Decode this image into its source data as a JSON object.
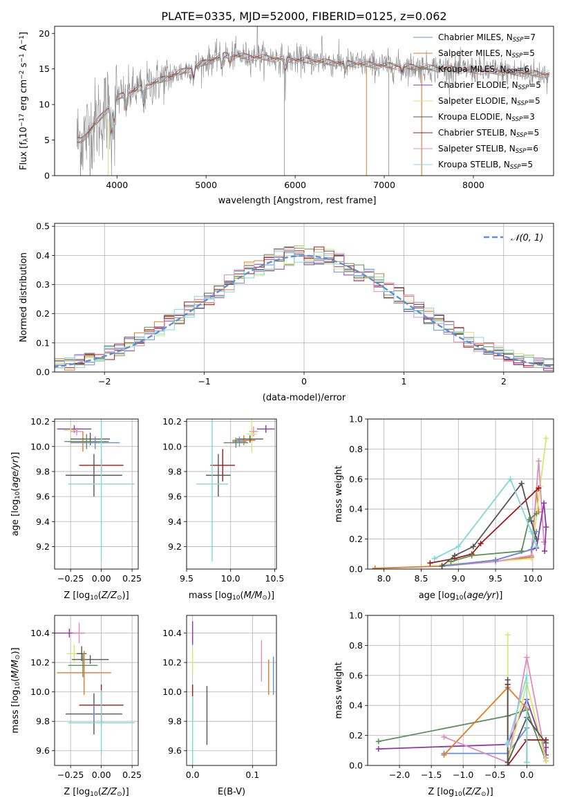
{
  "title": "PLATE=0335, MJD=52000, FIBERID=0125, z=0.062",
  "colors": [
    "#6a8fd8",
    "#e07a26",
    "#5a8f5a",
    "#8e35a8",
    "#d7e86a",
    "#555555",
    "#a01818",
    "#e08cbf",
    "#7fd8dc",
    "#888888"
  ],
  "chart_data": [
    {
      "type": "line",
      "xlabel": "wavelength [Angstrom, rest frame]",
      "ylabel": "Flux [f",
      "ylabel_parts": [
        "Flux [f",
        "λ",
        "10",
        "−17",
        " erg cm",
        "−2",
        " s",
        "−1",
        " A",
        "−1",
        "]"
      ],
      "xlim": [
        3300,
        8900
      ],
      "ylim": [
        0,
        21
      ],
      "xticks": [
        4000,
        5000,
        6000,
        7000,
        8000
      ],
      "yticks": [
        0,
        5,
        10,
        15,
        20
      ],
      "grid": false,
      "legend_position": "top-right",
      "series": [
        {
          "name": "Chabrier MILES",
          "nssp": "7"
        },
        {
          "name": "Salpeter MILES",
          "nssp": "5"
        },
        {
          "name": "Kroupa MILES",
          "nssp": "6"
        },
        {
          "name": "Chabrier ELODIE",
          "nssp": "5"
        },
        {
          "name": "Salpeter ELODIE",
          "nssp": "5"
        },
        {
          "name": "Kroupa ELODIE",
          "nssp": "3"
        },
        {
          "name": "Chabrier STELIB",
          "nssp": "5"
        },
        {
          "name": "Salpeter STELIB",
          "nssp": "6"
        },
        {
          "name": "Kroupa STELIB",
          "nssp": "5"
        }
      ],
      "legend_sub": "SSP",
      "legend_prefix": "N"
    },
    {
      "type": "line",
      "xlabel": "(data-model)/error",
      "ylabel": "Normed distribution",
      "xlim": [
        -2.5,
        2.5
      ],
      "ylim": [
        0,
        0.51
      ],
      "xticks": [
        -2,
        -1,
        0,
        1,
        2
      ],
      "yticks": [
        0.0,
        0.1,
        0.2,
        0.3,
        0.4,
        0.5
      ],
      "grid": true,
      "legend_position": "top-right",
      "reference": {
        "name": "𝒩(0, 1)",
        "color": "#5b8fd6"
      }
    },
    {
      "type": "scatter",
      "xlabel": "Z [log",
      "xlabel_parts": [
        "Z [log",
        "10",
        "(Z/Z",
        "⊙",
        ")]"
      ],
      "ylabel_parts": [
        "age  [log",
        "10",
        "(age/yr)]"
      ],
      "xlim": [
        -0.38,
        0.3
      ],
      "ylim": [
        9.02,
        10.22
      ],
      "xticks": [
        -0.25,
        0.0,
        0.25
      ],
      "yticks": [
        9.2,
        9.4,
        9.6,
        9.8,
        10.0,
        10.2
      ],
      "grid": true,
      "points": [
        {
          "x": -0.22,
          "xerr": 0.14,
          "y": 10.14,
          "yerr": 0.03,
          "color": 3
        },
        {
          "x": -0.25,
          "xerr": 0.06,
          "y": 10.13,
          "yerr": 0.03,
          "color": 4
        },
        {
          "x": -0.2,
          "xerr": 0.05,
          "y": 10.12,
          "yerr": 0.03,
          "color": 7
        },
        {
          "x": -0.15,
          "xerr": 0.12,
          "y": 10.04,
          "yerr": 0.08,
          "color": 1
        },
        {
          "x": -0.09,
          "xerr": 0.16,
          "y": 10.06,
          "yerr": 0.05,
          "color": 5
        },
        {
          "x": -0.12,
          "xerr": 0.18,
          "y": 10.04,
          "yerr": 0.06,
          "color": 2
        },
        {
          "x": -0.05,
          "xerr": 0.2,
          "y": 10.03,
          "yerr": 0.05,
          "color": 0
        },
        {
          "x": 0.0,
          "xerr": 0.18,
          "y": 9.85,
          "yerr": 0.05,
          "color": 6
        },
        {
          "x": -0.06,
          "xerr": 0.23,
          "y": 9.77,
          "yerr": 0.17,
          "color": 5
        },
        {
          "x": 0.0,
          "xerr": 0.27,
          "y": 9.7,
          "yerr": 0.62,
          "color": 8
        }
      ]
    },
    {
      "type": "scatter",
      "xlabel_parts": [
        "mass [log",
        "10",
        "(M/M",
        "⊙",
        ")]"
      ],
      "xlim": [
        9.5,
        10.52
      ],
      "ylim": [
        9.02,
        10.22
      ],
      "xticks": [
        9.5,
        10.0,
        10.5
      ],
      "yticks": [
        9.2,
        9.4,
        9.6,
        9.8,
        10.0,
        10.2
      ],
      "grid": true,
      "points": [
        {
          "x": 10.4,
          "xerr": 0.1,
          "y": 10.14,
          "yerr": 0.03,
          "color": 3
        },
        {
          "x": 10.26,
          "xerr": 0.05,
          "y": 10.12,
          "yerr": 0.04,
          "color": 7
        },
        {
          "x": 10.24,
          "xerr": 0.06,
          "y": 10.1,
          "yerr": 0.15,
          "color": 4
        },
        {
          "x": 10.15,
          "xerr": 0.13,
          "y": 10.05,
          "yerr": 0.04,
          "color": 1
        },
        {
          "x": 10.22,
          "xerr": 0.15,
          "y": 10.06,
          "yerr": 0.03,
          "color": 5
        },
        {
          "x": 10.1,
          "xerr": 0.08,
          "y": 10.04,
          "yerr": 0.04,
          "color": 0
        },
        {
          "x": 10.06,
          "xerr": 0.14,
          "y": 10.03,
          "yerr": 0.04,
          "color": 2
        },
        {
          "x": 9.91,
          "xerr": 0.14,
          "y": 9.85,
          "yerr": 0.13,
          "color": 6
        },
        {
          "x": 9.86,
          "xerr": 0.14,
          "y": 9.77,
          "yerr": 0.17,
          "color": 5
        },
        {
          "x": 9.79,
          "xerr": 0.18,
          "y": 9.7,
          "yerr": 0.62,
          "color": 8
        }
      ]
    },
    {
      "type": "line",
      "xlabel_parts": [
        "age  [log",
        "10",
        "(age/yr)]"
      ],
      "ylabel": "mass weight",
      "xlim": [
        7.78,
        10.28
      ],
      "ylim": [
        0,
        1.0
      ],
      "xticks": [
        8.0,
        8.5,
        9.0,
        9.5,
        10.0
      ],
      "yticks": [
        0.0,
        0.2,
        0.4,
        0.6,
        0.8,
        1.0
      ],
      "grid": true,
      "series": [
        {
          "color": 1,
          "x": [
            7.88,
            8.78,
            9.5,
            9.98,
            10.05,
            10.08
          ],
          "y": [
            0.005,
            0.02,
            0.05,
            0.08,
            0.52,
            0.38
          ]
        },
        {
          "color": 4,
          "x": [
            8.78,
            9.5,
            9.98,
            10.1,
            10.18
          ],
          "y": [
            0.03,
            0.05,
            0.07,
            0.55,
            0.87
          ]
        },
        {
          "color": 7,
          "x": [
            8.78,
            9.5,
            9.98,
            10.08,
            10.15
          ],
          "y": [
            0.02,
            0.05,
            0.09,
            0.72,
            0.18
          ]
        },
        {
          "color": 3,
          "x": [
            8.78,
            9.5,
            9.98,
            10.05,
            10.15,
            10.18,
            10.16
          ],
          "y": [
            0.02,
            0.06,
            0.13,
            0.14,
            0.44,
            0.28,
            0.12
          ]
        },
        {
          "color": 0,
          "x": [
            8.78,
            9.5,
            9.98,
            10.05
          ],
          "y": [
            0.02,
            0.06,
            0.13,
            0.25
          ]
        },
        {
          "color": 6,
          "x": [
            8.62,
            8.95,
            9.18,
            9.3,
            10.08
          ],
          "y": [
            0.04,
            0.07,
            0.1,
            0.17,
            0.54
          ]
        },
        {
          "color": 5,
          "x": [
            8.78,
            8.95,
            9.2,
            9.85,
            9.98,
            10.05
          ],
          "y": [
            0.02,
            0.09,
            0.15,
            0.57,
            0.32,
            0.2
          ]
        },
        {
          "color": 2,
          "x": [
            8.9,
            9.18,
            9.85,
            9.95,
            10.05
          ],
          "y": [
            0.05,
            0.09,
            0.12,
            0.33,
            0.37
          ]
        },
        {
          "color": 8,
          "x": [
            8.68,
            9.0,
            9.7,
            9.98,
            10.05
          ],
          "y": [
            0.07,
            0.15,
            0.6,
            0.25,
            0.15
          ]
        }
      ]
    },
    {
      "type": "scatter",
      "xlabel_parts": [
        "Z [log",
        "10",
        "(Z/Z",
        "⊙",
        ")]"
      ],
      "ylabel_parts": [
        "mass [log",
        "10",
        "(M/M",
        "⊙",
        ")]"
      ],
      "xlim": [
        -0.38,
        0.3
      ],
      "ylim": [
        9.5,
        10.52
      ],
      "xticks": [
        -0.25,
        0.0,
        0.25
      ],
      "yticks": [
        9.6,
        9.8,
        10.0,
        10.2,
        10.4
      ],
      "grid": true,
      "points": [
        {
          "x": -0.26,
          "xerr": 0.12,
          "y": 10.4,
          "yerr": 0.03,
          "color": 3
        },
        {
          "x": -0.18,
          "xerr": 0.05,
          "y": 10.4,
          "yerr": 0.07,
          "color": 7
        },
        {
          "x": -0.22,
          "xerr": 0.06,
          "y": 10.26,
          "yerr": 0.06,
          "color": 4
        },
        {
          "x": -0.16,
          "xerr": 0.04,
          "y": 10.26,
          "yerr": 0.05,
          "color": 5
        },
        {
          "x": -0.09,
          "xerr": 0.15,
          "y": 10.22,
          "yerr": 0.03,
          "color": 5
        },
        {
          "x": -0.15,
          "xerr": 0.12,
          "y": 10.18,
          "yerr": 0.08,
          "color": 2
        },
        {
          "x": -0.14,
          "xerr": 0.22,
          "y": 10.13,
          "yerr": 0.15,
          "color": 1
        },
        {
          "x": 0.0,
          "xerr": 0.18,
          "y": 9.91,
          "yerr": 0.14,
          "color": 6
        },
        {
          "x": -0.06,
          "xerr": 0.23,
          "y": 9.85,
          "yerr": 0.14,
          "color": 5
        },
        {
          "x": 0.0,
          "xerr": 0.27,
          "y": 9.79,
          "yerr": 0.22,
          "color": 8
        },
        {
          "x": -0.06,
          "xerr": 0.01,
          "y": 9.85,
          "yerr": 0.06,
          "color": 0
        }
      ]
    },
    {
      "type": "scatter",
      "xlabel": "E(B-V)",
      "xlim": [
        -0.01,
        0.14
      ],
      "ylim": [
        9.5,
        10.52
      ],
      "xticks": [
        0.0,
        0.1
      ],
      "yticks": [
        9.6,
        9.8,
        10.0,
        10.2,
        10.4
      ],
      "grid": true,
      "points": [
        {
          "x": 0.0,
          "y": 10.4,
          "yerr": 0.08,
          "color": 3
        },
        {
          "x": 0.0,
          "y": 10.21,
          "yerr": 0.08,
          "color": 4
        },
        {
          "x": 0.0,
          "y": 9.93,
          "yerr": 0.12,
          "color": 6
        },
        {
          "x": 0.0,
          "y": 9.72,
          "yerr": 0.25,
          "color": 8
        },
        {
          "x": 0.024,
          "y": 9.84,
          "yerr": 0.2,
          "color": 5
        },
        {
          "x": 0.115,
          "y": 10.21,
          "yerr": 0.14,
          "color": 7
        },
        {
          "x": 0.127,
          "y": 10.1,
          "yerr": 0.12,
          "color": 1
        },
        {
          "x": 0.135,
          "y": 10.11,
          "yerr": 0.13,
          "color": 0
        }
      ]
    },
    {
      "type": "line",
      "xlabel_parts": [
        "Z [log",
        "10",
        "(Z/Z",
        "⊙",
        ")]"
      ],
      "ylabel": "mass weight",
      "xlim": [
        -2.5,
        0.42
      ],
      "ylim": [
        0,
        1.0
      ],
      "xticks": [
        -2.0,
        -1.5,
        -1.0,
        -0.5,
        0.0
      ],
      "yticks": [
        0.0,
        0.2,
        0.4,
        0.6,
        0.8,
        1.0
      ],
      "grid": true,
      "series": [
        {
          "color": 3,
          "x": [
            -2.33,
            -0.3,
            0.0,
            0.3,
            0.3
          ],
          "y": [
            0.11,
            0.14,
            0.44,
            0.07,
            0.12
          ]
        },
        {
          "color": 2,
          "x": [
            -2.33,
            -0.3,
            0.0,
            0.3
          ],
          "y": [
            0.16,
            0.33,
            0.37,
            0.03
          ]
        },
        {
          "color": 0,
          "x": [
            -1.3,
            -0.3,
            0.0,
            0.0
          ],
          "y": [
            0.08,
            0.08,
            0.25,
            0.02
          ]
        },
        {
          "color": 1,
          "x": [
            -1.3,
            -0.3,
            0.0,
            0.0
          ],
          "y": [
            0.07,
            0.52,
            0.38,
            0.02
          ]
        },
        {
          "color": 7,
          "x": [
            -1.3,
            -0.3,
            0.0,
            0.3
          ],
          "y": [
            0.19,
            0.02,
            0.72,
            0.05
          ]
        },
        {
          "color": 4,
          "x": [
            -0.3,
            -0.3,
            0.0,
            0.3
          ],
          "y": [
            0.87,
            0.02,
            0.55,
            0.03
          ]
        },
        {
          "color": 6,
          "x": [
            -0.3,
            -0.3,
            0.0,
            0.3
          ],
          "y": [
            0.54,
            0.0,
            0.17,
            0.17
          ]
        },
        {
          "color": 5,
          "x": [
            -0.3,
            -0.3,
            0.0,
            0.3
          ],
          "y": [
            0.57,
            0.02,
            0.32,
            0.15
          ]
        },
        {
          "color": 8,
          "x": [
            -0.3,
            -0.3,
            0.0,
            0.0
          ],
          "y": [
            0.15,
            0.14,
            0.6,
            0.02
          ]
        }
      ]
    }
  ]
}
